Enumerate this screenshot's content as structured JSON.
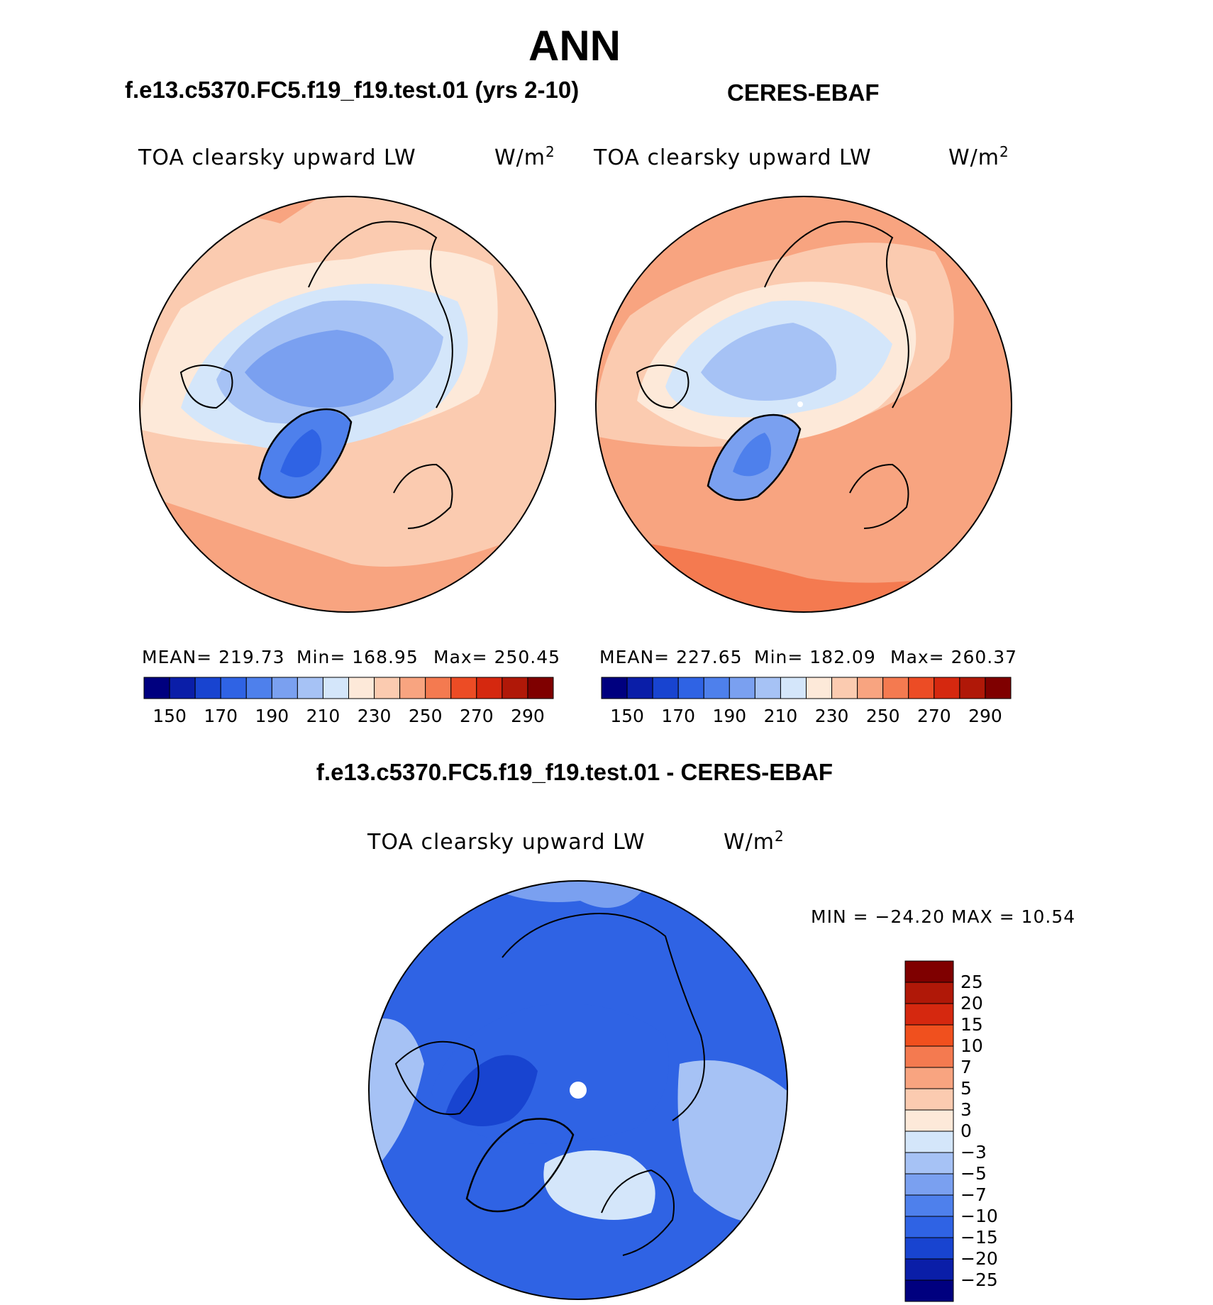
{
  "title": "ANN",
  "panels": {
    "test": {
      "case": "f.e13.c5370.FC5.f19_f19.test.01 (yrs 2-10)",
      "variable": "TOA clearsky upward LW",
      "units_base": "W/m",
      "units_exp": "2",
      "stats": {
        "mean_label": "MEAN= 219.73",
        "min_label": "Min= 168.95",
        "max_label": "Max= 250.45"
      }
    },
    "obs": {
      "case": "CERES-EBAF",
      "variable": "TOA clearsky upward LW",
      "units_base": "W/m",
      "units_exp": "2",
      "stats": {
        "mean_label": "MEAN= 227.65",
        "min_label": "Min= 182.09",
        "max_label": "Max= 260.37"
      }
    },
    "diff": {
      "case": "f.e13.c5370.FC5.f19_f19.test.01 - CERES-EBAF",
      "variable": "TOA clearsky upward LW",
      "units_base": "W/m",
      "units_exp": "2",
      "stats": {
        "minmax_label": "MIN = −24.20 MAX =   10.54"
      }
    }
  },
  "colorbar_main": {
    "ticks": [
      "150",
      "170",
      "190",
      "210",
      "230",
      "250",
      "270",
      "290"
    ],
    "colors": [
      "#00007f",
      "#0a1ea8",
      "#1844d0",
      "#2f63e4",
      "#4e80ec",
      "#7aa0f0",
      "#a6c2f5",
      "#d4e6fa",
      "#fde9d9",
      "#fbcbb0",
      "#f8a480",
      "#f47a50",
      "#ec4c25",
      "#d5280f",
      "#b01808",
      "#7f0000"
    ]
  },
  "colorbar_diff": {
    "ticks": [
      "25",
      "20",
      "15",
      "10",
      "7",
      "5",
      "3",
      "0",
      "−3",
      "−5",
      "−7",
      "−10",
      "−15",
      "−20",
      "−25"
    ],
    "colors": [
      "#7f0000",
      "#b01808",
      "#d5280f",
      "#f0501e",
      "#f47a50",
      "#f8a480",
      "#fbcbb0",
      "#fde9d9",
      "#d4e6fa",
      "#a6c2f5",
      "#7aa0f0",
      "#4e80ec",
      "#2f63e4",
      "#1844d0",
      "#0a1ea8",
      "#00007f"
    ]
  },
  "maps": {
    "test_fill": "#fbcbb0",
    "obs_fill": "#f8a480",
    "diff_fill": "#2f63e4"
  }
}
